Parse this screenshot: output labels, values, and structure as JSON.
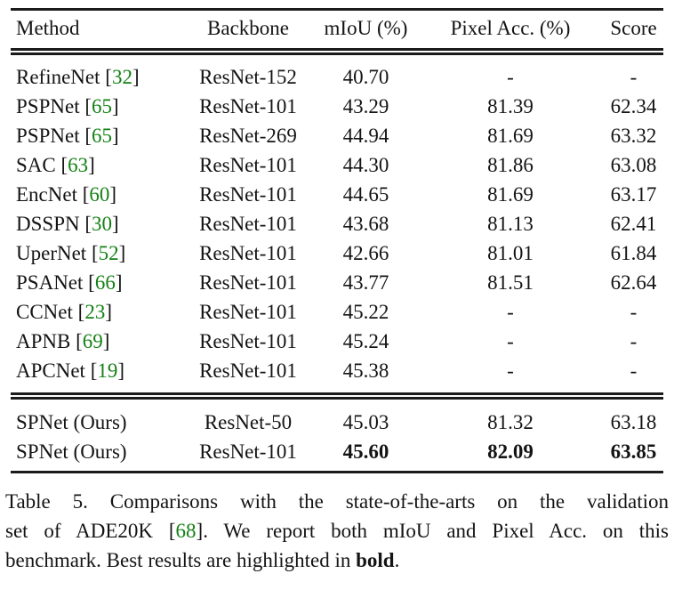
{
  "colors": {
    "citation": "#148114",
    "rule": "#1b1b1b",
    "text": "#141414",
    "background": "#ffffff"
  },
  "table": {
    "headers": [
      "Method",
      "Backbone",
      "mIoU (%)",
      "Pixel Acc. (%)",
      "Score"
    ],
    "rows": [
      {
        "method": "RefineNet ",
        "open": "[",
        "cite": "32",
        "close": "]",
        "backbone": "ResNet-152",
        "miou": "40.70",
        "pixel_acc": "-",
        "score": "-"
      },
      {
        "method": "PSPNet ",
        "open": "[",
        "cite": "65",
        "close": "]",
        "backbone": "ResNet-101",
        "miou": "43.29",
        "pixel_acc": "81.39",
        "score": "62.34"
      },
      {
        "method": "PSPNet ",
        "open": "[",
        "cite": "65",
        "close": "]",
        "backbone": "ResNet-269",
        "miou": "44.94",
        "pixel_acc": "81.69",
        "score": "63.32"
      },
      {
        "method": "SAC ",
        "open": "[",
        "cite": "63",
        "close": "]",
        "backbone": "ResNet-101",
        "miou": "44.30",
        "pixel_acc": "81.86",
        "score": "63.08"
      },
      {
        "method": "EncNet ",
        "open": "[",
        "cite": "60",
        "close": "]",
        "backbone": "ResNet-101",
        "miou": "44.65",
        "pixel_acc": "81.69",
        "score": "63.17"
      },
      {
        "method": "DSSPN ",
        "open": "[",
        "cite": "30",
        "close": "]",
        "backbone": "ResNet-101",
        "miou": "43.68",
        "pixel_acc": "81.13",
        "score": "62.41"
      },
      {
        "method": "UperNet ",
        "open": "[",
        "cite": "52",
        "close": "]",
        "backbone": "ResNet-101",
        "miou": "42.66",
        "pixel_acc": "81.01",
        "score": "61.84"
      },
      {
        "method": "PSANet ",
        "open": "[",
        "cite": "66",
        "close": "]",
        "backbone": "ResNet-101",
        "miou": "43.77",
        "pixel_acc": "81.51",
        "score": "62.64"
      },
      {
        "method": "CCNet ",
        "open": "[",
        "cite": "23",
        "close": "]",
        "backbone": "ResNet-101",
        "miou": "45.22",
        "pixel_acc": "-",
        "score": "-"
      },
      {
        "method": "APNB ",
        "open": "[",
        "cite": "69",
        "close": "]",
        "backbone": "ResNet-101",
        "miou": "45.24",
        "pixel_acc": "-",
        "score": "-"
      },
      {
        "method": "APCNet ",
        "open": "[",
        "cite": "19",
        "close": "]",
        "backbone": "ResNet-101",
        "miou": "45.38",
        "pixel_acc": "-",
        "score": "-"
      },
      {
        "method": "SPNet (Ours)",
        "open": "",
        "cite": "",
        "close": "",
        "backbone": "ResNet-50",
        "miou": "45.03",
        "pixel_acc": "81.32",
        "score": "63.18"
      },
      {
        "method": "SPNet (Ours)",
        "open": "",
        "cite": "",
        "close": "",
        "backbone": "ResNet-101",
        "miou": "45.60",
        "pixel_acc": "82.09",
        "score": "63.85"
      }
    ]
  },
  "caption": {
    "line1": "Table 5. Comparisons with the state-of-the-arts on the validation",
    "line2_pre": "set of ADE20K [",
    "line2_cite": "68",
    "line2_post": "]. We report both mIoU and Pixel Acc. on this",
    "line3_pre": "benchmark. Best results are highlighted in ",
    "line3_bold": "bold",
    "line3_post": "."
  }
}
